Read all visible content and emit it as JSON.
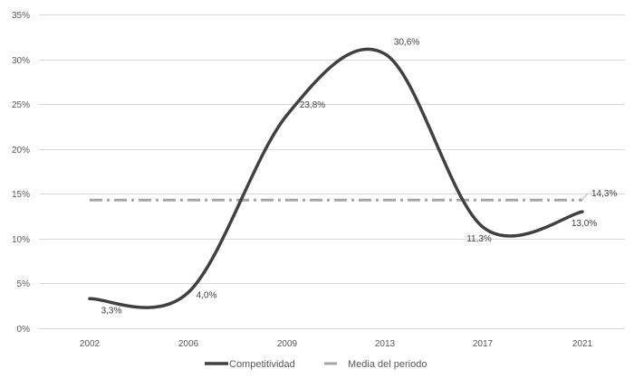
{
  "chart_data": {
    "type": "line",
    "x": [
      "2002",
      "2006",
      "2009",
      "2013",
      "2017",
      "2021"
    ],
    "series": [
      {
        "name": "Competitividad",
        "values": [
          3.3,
          4.0,
          23.8,
          30.6,
          11.3,
          13.0
        ],
        "labels": [
          "3,3%",
          "4,0%",
          "23,8%",
          "30,6%",
          "11,3%",
          "13,0%"
        ],
        "color": "#404040",
        "style": "solid-smooth"
      },
      {
        "name": "Media del periodo",
        "values": [
          14.3,
          14.3,
          14.3,
          14.3,
          14.3,
          14.3
        ],
        "end_label": "14,3%",
        "color": "#a6a6a6",
        "style": "dash-dot"
      }
    ],
    "ylim": [
      0,
      35
    ],
    "yticks": [
      0,
      5,
      10,
      15,
      20,
      25,
      30,
      35
    ],
    "ytick_labels": [
      "0%",
      "5%",
      "10%",
      "15%",
      "20%",
      "25%",
      "30%",
      "35%"
    ],
    "grid": true,
    "legend": "bottom"
  }
}
